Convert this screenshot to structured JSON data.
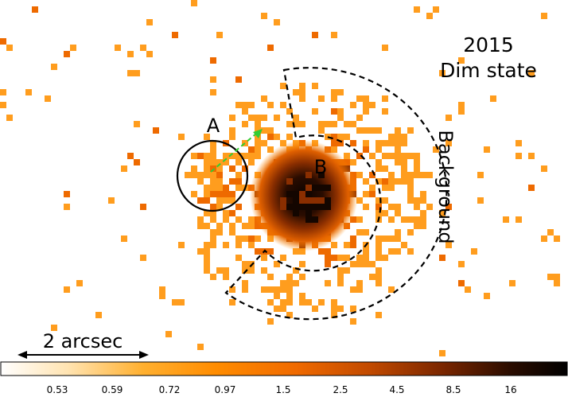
{
  "figure": {
    "year_label": "2015",
    "state_label": "Dim state",
    "source_a_label": "A",
    "source_b_label": "B",
    "background_label": "Background",
    "scale_bar_label": "2 arcsec"
  },
  "colorbar": {
    "tick_labels": [
      "0.53",
      "0.59",
      "0.72",
      "0.97",
      "1.5",
      "2.5",
      "4.5",
      "8.5",
      "16"
    ],
    "gradient_colors": [
      "#ffffff",
      "#ffe3b0",
      "#ffb030",
      "#ff8c00",
      "#f06a00",
      "#c24a00",
      "#7a2600",
      "#2a0c00",
      "#000000"
    ]
  },
  "colors": {
    "pixel_light": "#ff9d1e",
    "pixel_mid": "#ee6a00",
    "pixel_dark": "#8a2e00",
    "core": "#140600",
    "arrow": "#33cc33"
  }
}
